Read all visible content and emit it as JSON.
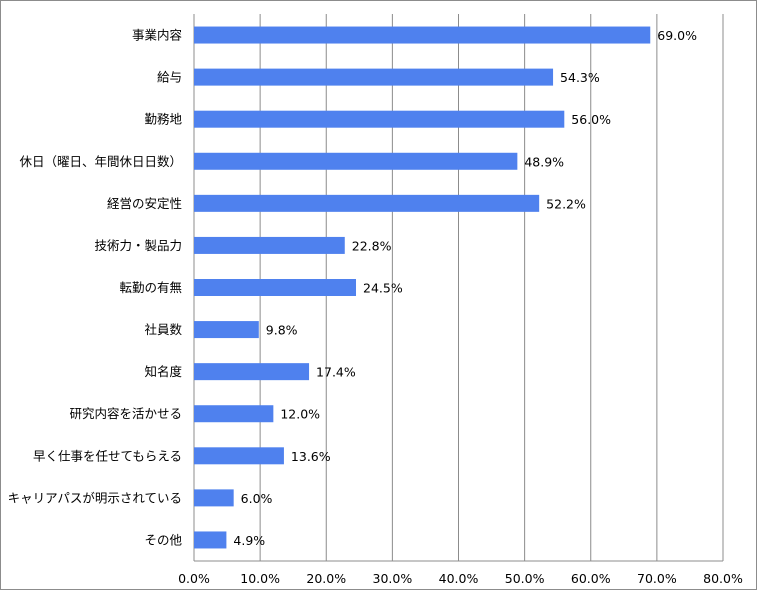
{
  "chart_data": {
    "type": "bar",
    "orientation": "horizontal",
    "categories": [
      "事業内容",
      "給与",
      "勤務地",
      "休日（曜日、年間休日日数）",
      "経営の安定性",
      "技術力・製品力",
      "転勤の有無",
      "社員数",
      "知名度",
      "研究内容を活かせる",
      "早く仕事を任せてもらえる",
      "キャリアパスが明示されている",
      "その他"
    ],
    "values": [
      69.0,
      54.3,
      56.0,
      48.9,
      52.2,
      22.8,
      24.5,
      9.8,
      17.4,
      12.0,
      13.6,
      6.0,
      4.9
    ],
    "value_labels": [
      "69.0%",
      "54.3%",
      "56.0%",
      "48.9%",
      "52.2%",
      "22.8%",
      "24.5%",
      "9.8%",
      "17.4%",
      "12.0%",
      "13.6%",
      "6.0%",
      "4.9%"
    ],
    "x_ticks": [
      0,
      10,
      20,
      30,
      40,
      50,
      60,
      70,
      80
    ],
    "x_tick_labels": [
      "0.0%",
      "10.0%",
      "20.0%",
      "30.0%",
      "40.0%",
      "50.0%",
      "60.0%",
      "70.0%",
      "80.0%"
    ],
    "xlim": [
      0,
      80
    ],
    "grid": "vertical",
    "legend": "none",
    "bar_color": "#4F81EE",
    "grid_color": "#8C8C8C"
  }
}
